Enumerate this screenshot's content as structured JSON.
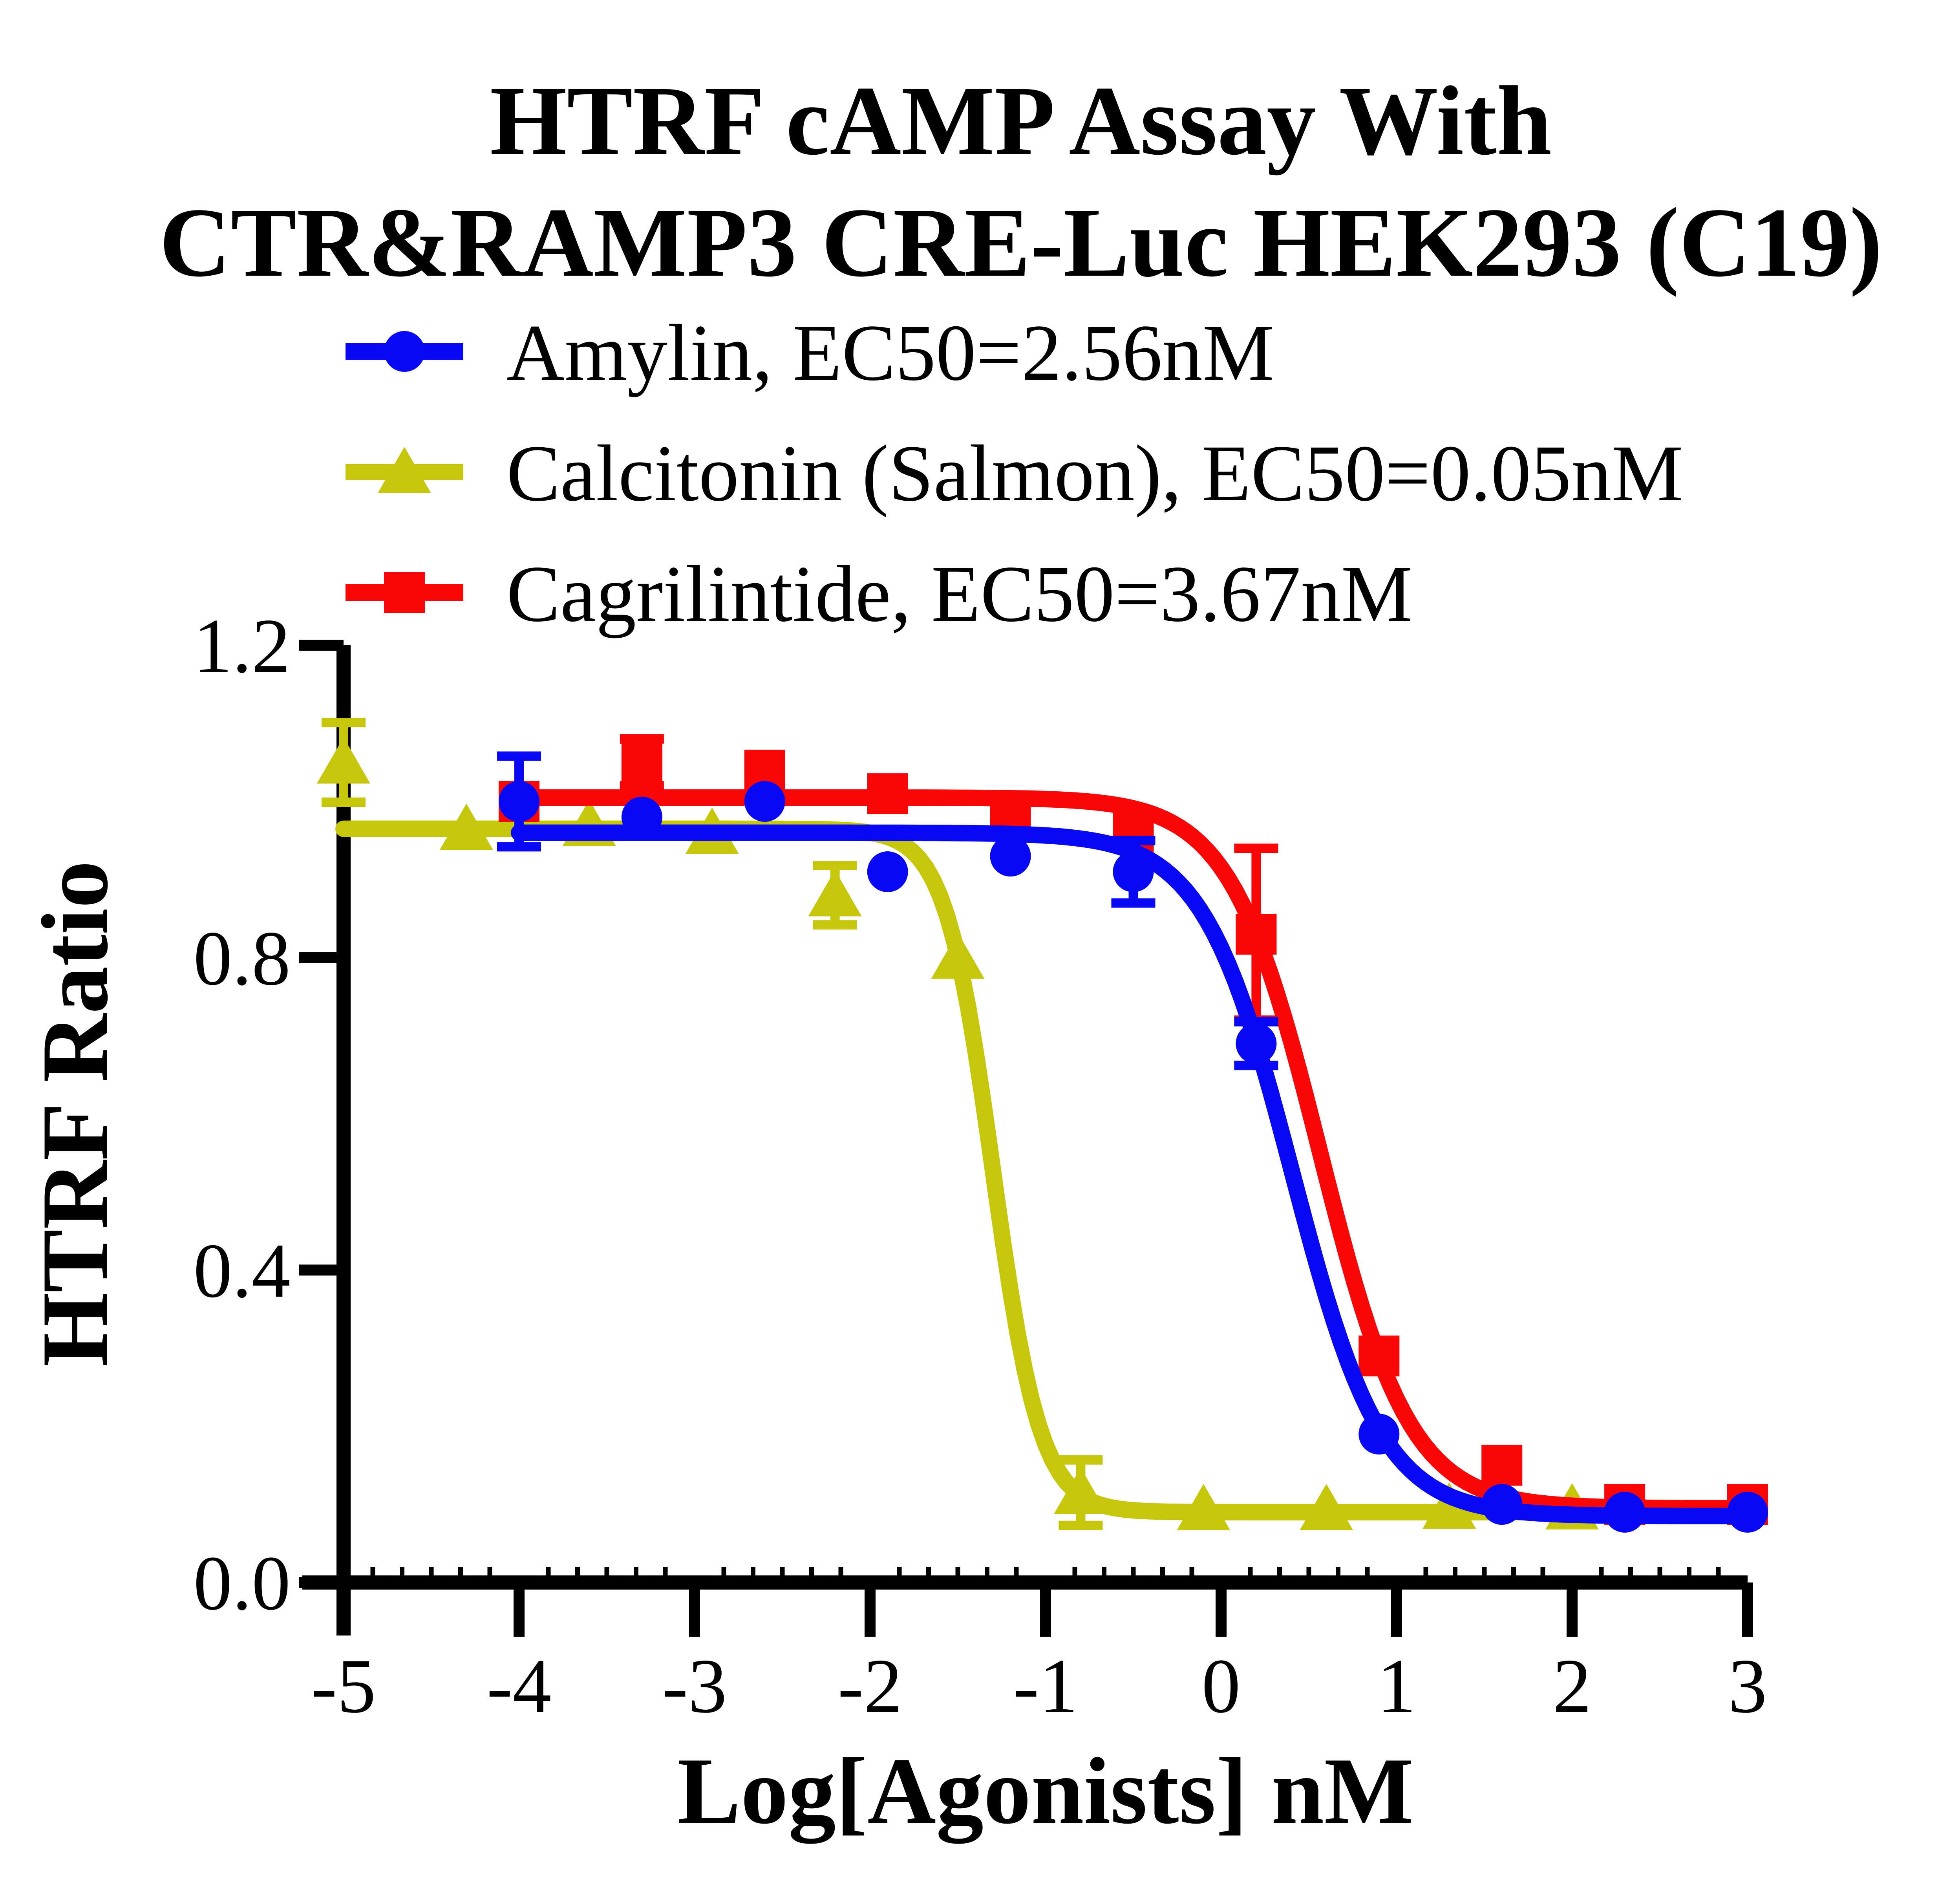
{
  "figure": {
    "title_line1": "HTRF cAMP Assay With",
    "title_line2": "CTR&RAMP3 CRE-Luc HEK293 (C19)"
  },
  "legend": {
    "items": [
      {
        "series": "Amylin",
        "label": "Amylin,  EC50=2.56nM"
      },
      {
        "series": "Calcitonin (Salmon)",
        "label": "Calcitonin (Salmon),  EC50=0.05nM"
      },
      {
        "series": "Cagrilintide",
        "label": "Cagrilintide,  EC50=3.67nM"
      }
    ]
  },
  "axes": {
    "x": {
      "title": "Log[Agonists] nM",
      "ticks": [
        {
          "v": -5,
          "label": "-5"
        },
        {
          "v": -4,
          "label": "-4"
        },
        {
          "v": -3,
          "label": "-3"
        },
        {
          "v": -2,
          "label": "-2"
        },
        {
          "v": -1,
          "label": "-1"
        },
        {
          "v": 0,
          "label": "0"
        },
        {
          "v": 1,
          "label": "1"
        },
        {
          "v": 2,
          "label": "2"
        },
        {
          "v": 3,
          "label": "3"
        }
      ]
    },
    "y": {
      "title": "HTRF Ratio",
      "ticks": [
        {
          "v": 0.0,
          "label": "0.0"
        },
        {
          "v": 0.4,
          "label": "0.4"
        },
        {
          "v": 0.8,
          "label": "0.8"
        },
        {
          "v": 1.2,
          "label": "1.2"
        }
      ]
    }
  },
  "chart_data": {
    "type": "line",
    "title": "HTRF cAMP Assay With CTR&RAMP3 CRE-Luc HEK293 (C19)",
    "xlabel": "Log[Agonists] nM",
    "ylabel": "HTRF Ratio",
    "xlim": [
      -5,
      3
    ],
    "ylim": [
      0,
      1.2
    ],
    "grid": false,
    "legend_position": "top-left",
    "series": [
      {
        "name": "Calcitonin (Salmon)",
        "ec50_label": "EC50=0.05nM",
        "ec50_nM": 0.05,
        "color": "#C6C60A",
        "marker": "triangle",
        "x": [
          -5.0,
          -4.3,
          -3.6,
          -2.9,
          -2.2,
          -1.5,
          -0.8,
          -0.1,
          0.6,
          1.3,
          2.0
        ],
        "y": [
          1.05,
          0.965,
          0.97,
          0.96,
          0.88,
          0.8,
          0.115,
          0.094,
          0.094,
          0.096,
          0.095
        ],
        "yerr": [
          0.051,
          0,
          0,
          0,
          0.038,
          0,
          0.042,
          0,
          0,
          0,
          0
        ],
        "fit": {
          "top": 0.965,
          "bottom": 0.09,
          "logec50": -1.3,
          "hill": 3.2,
          "xstart": -5.0,
          "xend": 2.0
        }
      },
      {
        "name": "Cagrilintide",
        "ec50_label": "EC50=3.67nM",
        "ec50_nM": 3.67,
        "color": "#F90606",
        "marker": "square",
        "x": [
          -4.0,
          -3.3,
          -2.6,
          -1.9,
          -1.2,
          -0.5,
          0.2,
          0.9,
          1.6,
          2.3,
          3.0
        ],
        "y": [
          1.0,
          1.05,
          1.04,
          1.01,
          0.98,
          0.96,
          0.83,
          0.29,
          0.15,
          0.1,
          0.1
        ],
        "yerr": [
          0,
          0.03,
          0,
          0,
          0,
          0,
          0.11,
          0,
          0,
          0,
          0
        ],
        "fit": {
          "top": 1.005,
          "bottom": 0.095,
          "logec50": 0.565,
          "hill": 1.7,
          "xstart": -4.0,
          "xend": 3.03
        }
      },
      {
        "name": "Amylin",
        "ec50_label": "EC50=2.56nM",
        "ec50_nM": 2.56,
        "color": "#0808F6",
        "marker": "circle",
        "x": [
          -4.0,
          -3.3,
          -2.6,
          -1.9,
          -1.2,
          -0.5,
          0.2,
          0.9,
          1.6,
          2.3,
          3.0
        ],
        "y": [
          1.0,
          0.98,
          1.0,
          0.91,
          0.93,
          0.91,
          0.69,
          0.19,
          0.1,
          0.09,
          0.09
        ],
        "yerr": [
          0.058,
          0,
          0,
          0,
          0,
          0.04,
          0.028,
          0,
          0,
          0,
          0
        ],
        "fit": {
          "top": 0.96,
          "bottom": 0.085,
          "logec50": 0.408,
          "hill": 1.7,
          "xstart": -4.0,
          "xend": 3.03
        }
      }
    ]
  },
  "style": {
    "axis_color": "#000000",
    "background": "#ffffff"
  }
}
